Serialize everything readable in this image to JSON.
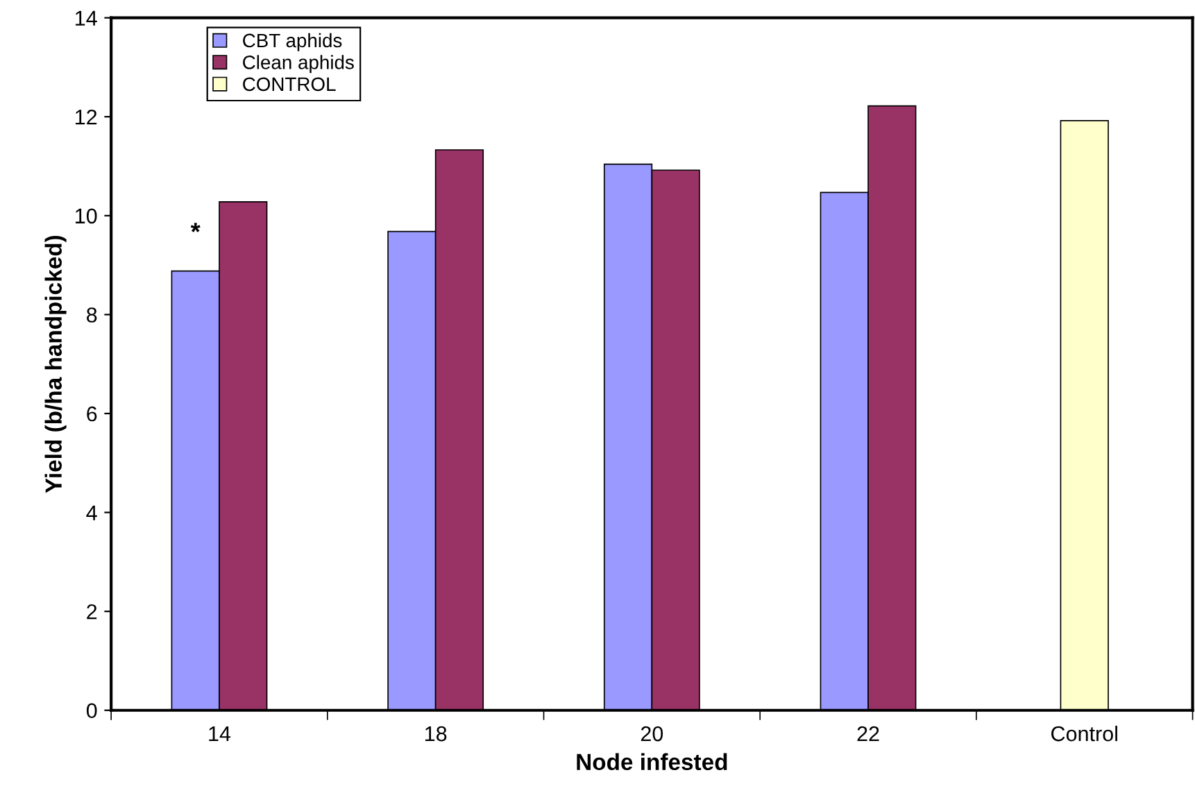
{
  "chart_data": {
    "type": "bar",
    "xlabel": "Node infested",
    "ylabel": "Yield (b/ha handpicked)",
    "categories": [
      "14",
      "18",
      "20",
      "22",
      "Control"
    ],
    "series": [
      {
        "name": "CBT aphids",
        "color": "#9999ff",
        "values": [
          8.88,
          9.68,
          11.04,
          10.47,
          null
        ]
      },
      {
        "name": "Clean aphids",
        "color": "#993366",
        "values": [
          10.28,
          11.33,
          10.92,
          12.22,
          null
        ]
      },
      {
        "name": "CONTROL",
        "color": "#ffffcc",
        "values": [
          null,
          null,
          null,
          null,
          11.92
        ]
      }
    ],
    "ylim": [
      0,
      14
    ],
    "yticks": [
      0,
      2,
      4,
      6,
      8,
      10,
      12,
      14
    ],
    "annotations": [
      {
        "text": "*",
        "x": "14",
        "y": 9.4
      }
    ],
    "legend": "top left",
    "grid": false
  }
}
